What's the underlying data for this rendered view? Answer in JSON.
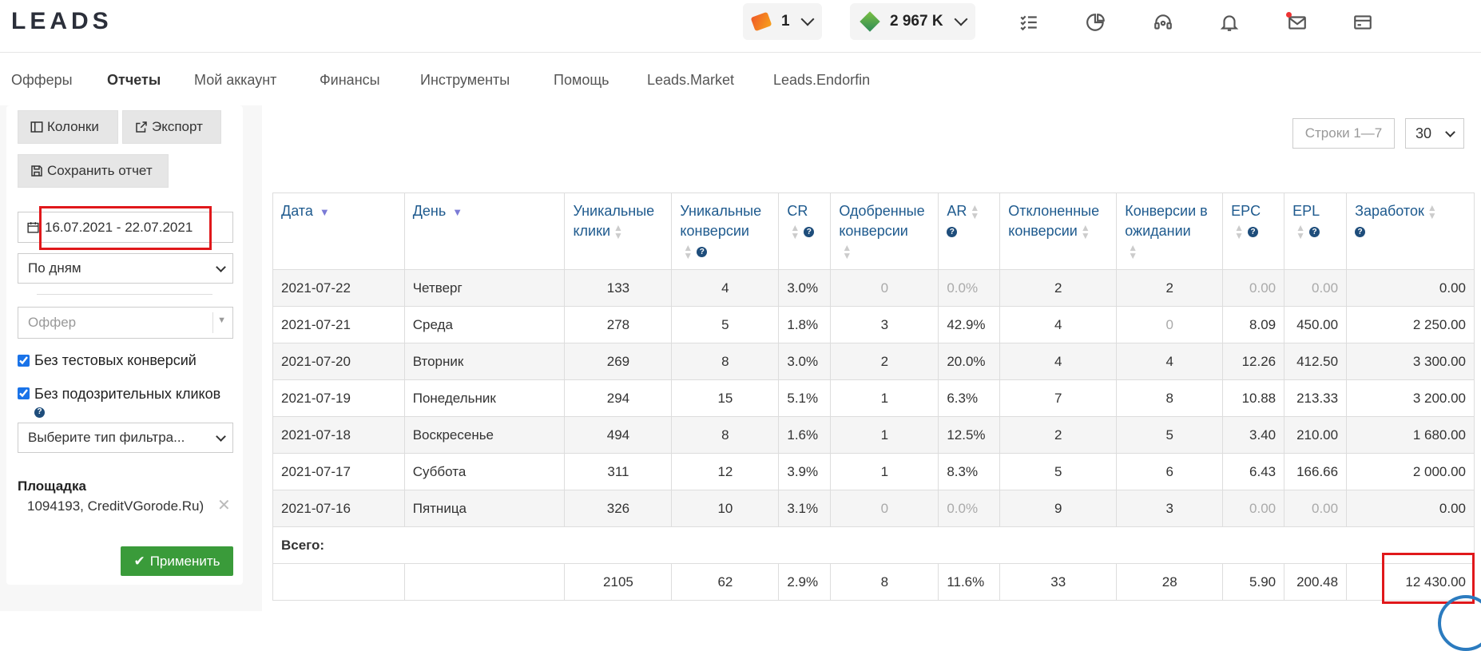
{
  "header": {
    "logo": "LEADS",
    "tickets_count": "1",
    "balance": "2 967 K",
    "icons": [
      "tasks-icon",
      "chart-pie-icon",
      "support-icon",
      "bell-icon",
      "mail-icon",
      "card-icon"
    ]
  },
  "nav": {
    "items": [
      "Офферы",
      "Отчеты",
      "Мой аккаунт",
      "Финансы",
      "Инструменты",
      "Помощь",
      "Leads.Market",
      "Leads.Endorfin"
    ],
    "active": "Отчеты"
  },
  "sidebar": {
    "columns_btn": "Колонки",
    "export_btn": "Экспорт",
    "save_btn": "Сохранить отчет",
    "date_range": "16.07.2021 - 22.07.2021",
    "group_by": "По дням",
    "offer_placeholder": "Оффер",
    "no_test": "Без тестовых конверсий",
    "no_suspicious": "Без подозрительных кликов",
    "filter_type": "Выберите тип фильтра...",
    "platform_label": "Площадка",
    "platform_value": "1094193, CreditVGorode.Ru)",
    "apply_btn": "Применить"
  },
  "pagination": {
    "rows_info": "Строки 1—7",
    "per_page": "30"
  },
  "table": {
    "headers": {
      "date": "Дата",
      "day": "День",
      "uniq_clicks_1": "Уникальные",
      "uniq_clicks_2": "клики",
      "uniq_conv_1": "Уникальные",
      "uniq_conv_2": "конверсии",
      "cr": "CR",
      "approved_1": "Одобренные",
      "approved_2": "конверсии",
      "ar": "AR",
      "rejected_1": "Отклоненные",
      "rejected_2": "конверсии",
      "pending_1": "Конверсии в",
      "pending_2": "ожидании",
      "epc": "EPC",
      "epl": "EPL",
      "earnings": "Заработок"
    },
    "rows": [
      {
        "date": "2021-07-22",
        "day": "Четверг",
        "clicks": "133",
        "conv": "4",
        "cr": "3.0%",
        "approved": "0",
        "ar": "0.0%",
        "rejected": "2",
        "pending": "2",
        "epc": "0.00",
        "epl": "0.00",
        "earn": "0.00"
      },
      {
        "date": "2021-07-21",
        "day": "Среда",
        "clicks": "278",
        "conv": "5",
        "cr": "1.8%",
        "approved": "3",
        "ar": "42.9%",
        "rejected": "4",
        "pending": "0",
        "epc": "8.09",
        "epl": "450.00",
        "earn": "2 250.00"
      },
      {
        "date": "2021-07-20",
        "day": "Вторник",
        "clicks": "269",
        "conv": "8",
        "cr": "3.0%",
        "approved": "2",
        "ar": "20.0%",
        "rejected": "4",
        "pending": "4",
        "epc": "12.26",
        "epl": "412.50",
        "earn": "3 300.00"
      },
      {
        "date": "2021-07-19",
        "day": "Понедельник",
        "clicks": "294",
        "conv": "15",
        "cr": "5.1%",
        "approved": "1",
        "ar": "6.3%",
        "rejected": "7",
        "pending": "8",
        "epc": "10.88",
        "epl": "213.33",
        "earn": "3 200.00"
      },
      {
        "date": "2021-07-18",
        "day": "Воскресенье",
        "clicks": "494",
        "conv": "8",
        "cr": "1.6%",
        "approved": "1",
        "ar": "12.5%",
        "rejected": "2",
        "pending": "5",
        "epc": "3.40",
        "epl": "210.00",
        "earn": "1 680.00"
      },
      {
        "date": "2021-07-17",
        "day": "Суббота",
        "clicks": "311",
        "conv": "12",
        "cr": "3.9%",
        "approved": "1",
        "ar": "8.3%",
        "rejected": "5",
        "pending": "6",
        "epc": "6.43",
        "epl": "166.66",
        "earn": "2 000.00"
      },
      {
        "date": "2021-07-16",
        "day": "Пятница",
        "clicks": "326",
        "conv": "10",
        "cr": "3.1%",
        "approved": "0",
        "ar": "0.0%",
        "rejected": "9",
        "pending": "3",
        "epc": "0.00",
        "epl": "0.00",
        "earn": "0.00"
      }
    ],
    "total_label": "Всего:",
    "total": {
      "clicks": "2105",
      "conv": "62",
      "cr": "2.9%",
      "approved": "8",
      "ar": "11.6%",
      "rejected": "33",
      "pending": "28",
      "epc": "5.90",
      "epl": "200.48",
      "earn": "12 430.00"
    }
  },
  "colors": {
    "link": "#1e5a8e",
    "apply": "#3a9b3a",
    "highlight": "#e0181b"
  }
}
